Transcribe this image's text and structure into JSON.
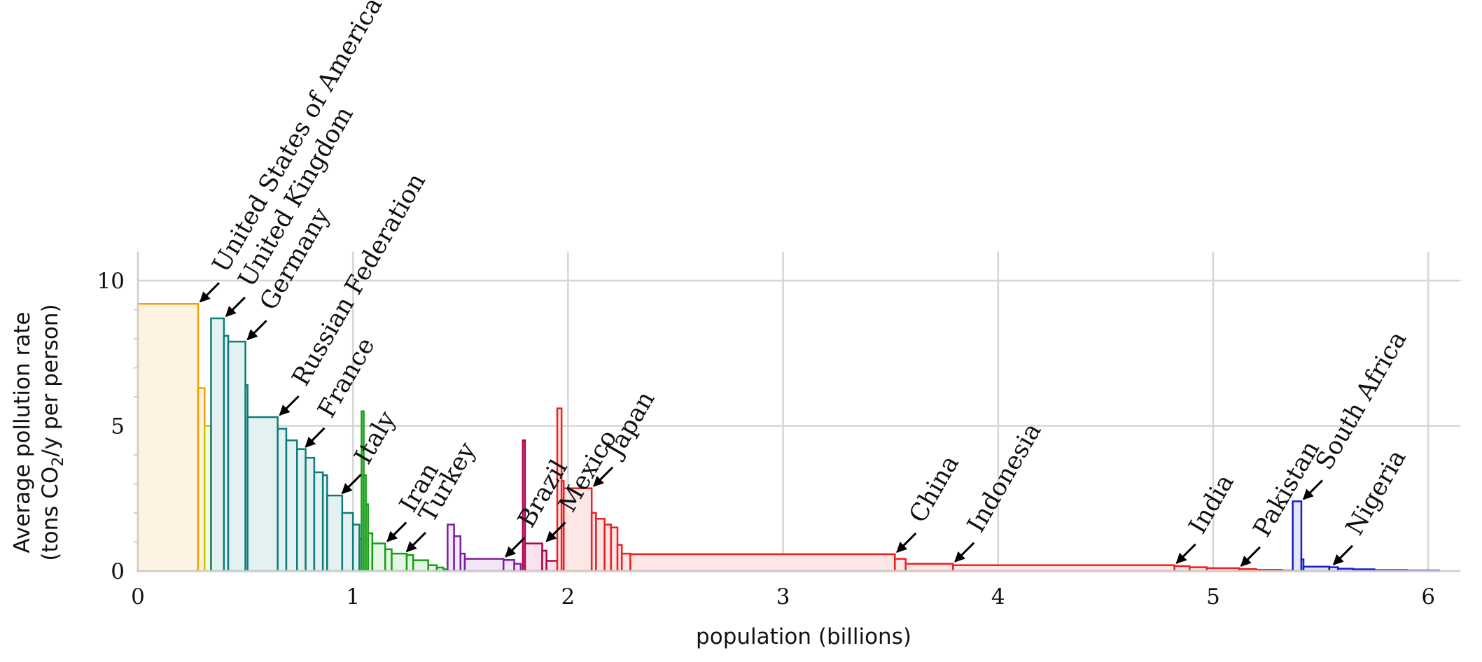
{
  "chart_data": {
    "type": "bar",
    "subtype": "variable-width step chart",
    "xlabel": "population (billions)",
    "ylabel_line1": "Average pollution rate",
    "ylabel_line2_prefix": "(tons CO",
    "ylabel_line2_sub": "2",
    "ylabel_line2_suffix": "/y per person)",
    "xlim": [
      0,
      6.15
    ],
    "ylim": [
      0,
      11
    ],
    "x_ticks": [
      {
        "value": 0,
        "label": "0"
      },
      {
        "value": 1,
        "label": "1"
      },
      {
        "value": 2,
        "label": "2"
      },
      {
        "value": 3,
        "label": "3"
      },
      {
        "value": 4,
        "label": "4"
      },
      {
        "value": 5,
        "label": "5"
      },
      {
        "value": 6,
        "label": "6"
      }
    ],
    "y_ticks": [
      {
        "value": 0,
        "label": "0"
      },
      {
        "value": 5,
        "label": "5"
      },
      {
        "value": 10,
        "label": "10"
      }
    ],
    "grid": true,
    "series": [
      {
        "color": "#f5a000",
        "fill": "#fef3e3",
        "bars": [
          [
            0,
            0.28,
            9.2
          ],
          [
            0.28,
            0.31,
            6.3
          ]
        ]
      },
      {
        "color": "#c8c800",
        "fill": "#fafae3",
        "bars": [
          [
            0.31,
            0.34,
            5.0
          ]
        ]
      },
      {
        "color": "#0f7b7b",
        "fill": "#e3f1f1",
        "bars": [
          [
            0.34,
            0.4,
            8.7
          ],
          [
            0.4,
            0.42,
            8.1
          ],
          [
            0.42,
            0.5,
            7.9
          ],
          [
            0.5,
            0.51,
            6.4
          ],
          [
            0.51,
            0.65,
            5.3
          ],
          [
            0.65,
            0.69,
            4.9
          ],
          [
            0.69,
            0.74,
            4.5
          ],
          [
            0.74,
            0.78,
            4.2
          ],
          [
            0.78,
            0.82,
            3.9
          ],
          [
            0.82,
            0.86,
            3.4
          ],
          [
            0.86,
            0.88,
            3.3
          ],
          [
            0.88,
            0.95,
            2.6
          ],
          [
            0.95,
            1.0,
            2.0
          ],
          [
            1.0,
            1.03,
            1.6
          ],
          [
            1.03,
            1.04,
            1.1
          ]
        ]
      },
      {
        "color": "#12a012",
        "fill": "#e6f5e6",
        "bars": [
          [
            1.04,
            1.05,
            5.5
          ],
          [
            1.05,
            1.06,
            3.3
          ],
          [
            1.06,
            1.07,
            2.3
          ],
          [
            1.07,
            1.09,
            1.3
          ],
          [
            1.09,
            1.15,
            0.95
          ],
          [
            1.15,
            1.18,
            0.75
          ],
          [
            1.18,
            1.25,
            0.6
          ],
          [
            1.25,
            1.28,
            0.55
          ],
          [
            1.28,
            1.35,
            0.37
          ],
          [
            1.35,
            1.39,
            0.2
          ],
          [
            1.39,
            1.42,
            0.12
          ],
          [
            1.42,
            1.44,
            0.06
          ]
        ]
      },
      {
        "color": "#7b1fa2",
        "fill": "#f2e6f7",
        "bars": [
          [
            1.44,
            1.47,
            1.6
          ],
          [
            1.47,
            1.5,
            1.2
          ],
          [
            1.5,
            1.52,
            0.6
          ],
          [
            1.52,
            1.7,
            0.42
          ],
          [
            1.7,
            1.75,
            0.38
          ],
          [
            1.75,
            1.78,
            0.25
          ]
        ]
      },
      {
        "color": "#b0004a",
        "fill": "#f9e3ec",
        "bars": [
          [
            1.79,
            1.8,
            4.5
          ],
          [
            1.8,
            1.88,
            0.95
          ],
          [
            1.88,
            1.9,
            0.7
          ],
          [
            1.9,
            1.95,
            0.35
          ]
        ]
      },
      {
        "color": "#f21d1d",
        "fill": "#fde6e6",
        "bars": [
          [
            1.95,
            1.97,
            5.6
          ],
          [
            1.97,
            1.98,
            3.1
          ],
          [
            1.98,
            2.11,
            2.85
          ],
          [
            2.11,
            2.13,
            2.0
          ],
          [
            2.13,
            2.17,
            1.8
          ],
          [
            2.17,
            2.2,
            1.6
          ],
          [
            2.2,
            2.23,
            1.5
          ],
          [
            2.23,
            2.25,
            0.9
          ],
          [
            2.25,
            2.29,
            0.6
          ],
          [
            2.29,
            3.52,
            0.58
          ],
          [
            3.52,
            3.57,
            0.42
          ],
          [
            3.57,
            3.79,
            0.25
          ],
          [
            3.79,
            4.82,
            0.2
          ],
          [
            4.82,
            4.89,
            0.17
          ],
          [
            4.89,
            4.97,
            0.13
          ],
          [
            4.97,
            5.12,
            0.1
          ],
          [
            5.12,
            5.2,
            0.07
          ],
          [
            5.2,
            5.32,
            0.04
          ],
          [
            5.32,
            5.36,
            0.02
          ]
        ]
      },
      {
        "color": "#1420c8",
        "fill": "#e6e7f8",
        "bars": [
          [
            5.37,
            5.41,
            2.4
          ],
          [
            5.41,
            5.42,
            0.4
          ],
          [
            5.42,
            5.54,
            0.15
          ],
          [
            5.54,
            5.58,
            0.13
          ],
          [
            5.58,
            5.65,
            0.08
          ],
          [
            5.65,
            5.75,
            0.06
          ],
          [
            5.75,
            5.9,
            0.03
          ],
          [
            5.9,
            6.05,
            0.02
          ]
        ]
      }
    ],
    "annotations": [
      {
        "text": "United States of America",
        "x": 0.28,
        "y": 9.2
      },
      {
        "text": "United Kingdom",
        "x": 0.4,
        "y": 8.7
      },
      {
        "text": "Germany",
        "x": 0.5,
        "y": 7.9
      },
      {
        "text": "Russian Federation",
        "x": 0.65,
        "y": 5.3
      },
      {
        "text": "France",
        "x": 0.77,
        "y": 4.2
      },
      {
        "text": "Italy",
        "x": 0.94,
        "y": 2.6
      },
      {
        "text": "Iran",
        "x": 1.15,
        "y": 0.95
      },
      {
        "text": "Turkey",
        "x": 1.24,
        "y": 0.6
      },
      {
        "text": "Brazil",
        "x": 1.7,
        "y": 0.42
      },
      {
        "text": "Mexico",
        "x": 1.89,
        "y": 0.95
      },
      {
        "text": "Japan",
        "x": 2.11,
        "y": 2.85
      },
      {
        "text": "China",
        "x": 3.52,
        "y": 0.58
      },
      {
        "text": "Indonesia",
        "x": 3.79,
        "y": 0.25
      },
      {
        "text": "India",
        "x": 4.82,
        "y": 0.2
      },
      {
        "text": "Pakistan",
        "x": 5.12,
        "y": 0.1
      },
      {
        "text": "South Africa",
        "x": 5.41,
        "y": 2.4
      },
      {
        "text": "Nigeria",
        "x": 5.55,
        "y": 0.15
      }
    ]
  }
}
